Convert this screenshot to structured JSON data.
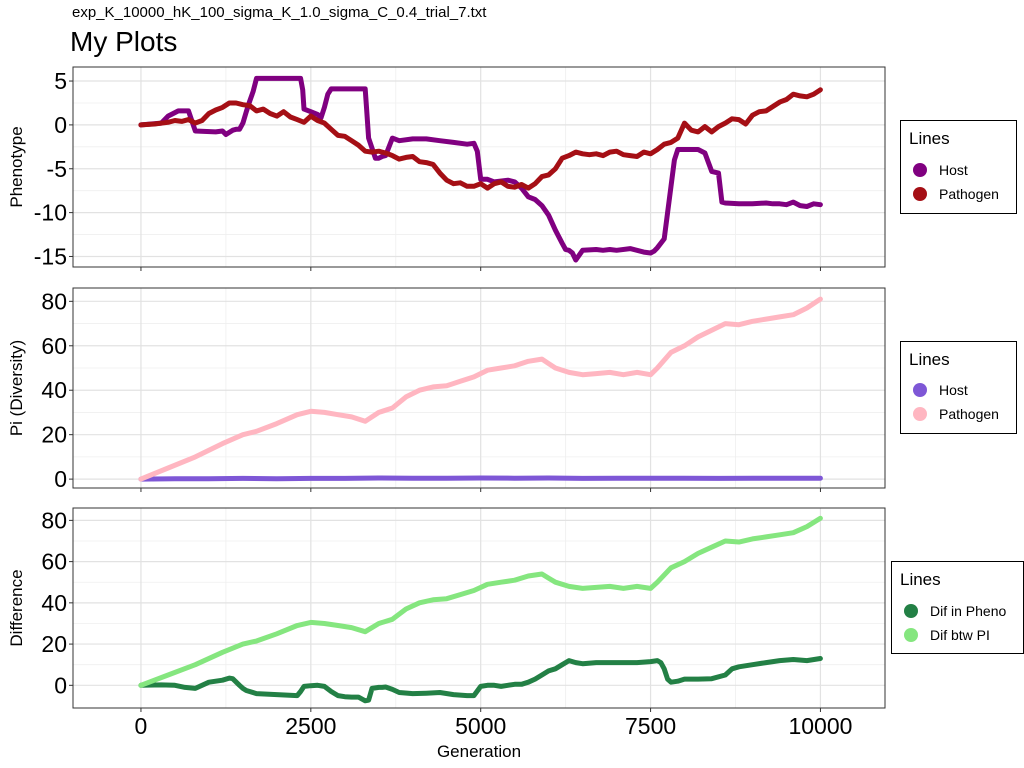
{
  "header": {
    "subtitle": "exp_K_10000_hK_100_sigma_K_1.0_sigma_C_0.4_trial_7.txt",
    "title": "My Plots"
  },
  "chart_data": [
    {
      "type": "line",
      "ylabel": "Phenotype",
      "xlabel": "",
      "xlim": [
        -1000,
        10950
      ],
      "ylim": [
        -16.2,
        6.6
      ],
      "yticks": [
        -15,
        -10,
        -5,
        0,
        5
      ],
      "xticks": [
        0,
        2500,
        5000,
        7500,
        10000
      ],
      "grid": true,
      "legend": {
        "title": "Lines",
        "placement": "right"
      },
      "series": [
        {
          "name": "Host",
          "color": "#800080",
          "x": [
            0,
            300,
            400,
            550,
            700,
            800,
            1100,
            1200,
            1250,
            1350,
            1400,
            1450,
            1500,
            1550,
            1600,
            1650,
            1700,
            2350,
            2380,
            2400,
            2500,
            2600,
            2650,
            2700,
            2750,
            2800,
            2850,
            3300,
            3320,
            3350,
            3450,
            3500,
            3550,
            3600,
            3700,
            3800,
            4000,
            4200,
            4400,
            4600,
            4800,
            4900,
            4950,
            5000,
            5100,
            5200,
            5400,
            5500,
            5600,
            5700,
            5800,
            5900,
            6000,
            6100,
            6200,
            6250,
            6300,
            6350,
            6400,
            6500,
            6700,
            6800,
            6900,
            7000,
            7200,
            7400,
            7500,
            7550,
            7600,
            7700,
            7750,
            7800,
            7850,
            7900,
            8200,
            8300,
            8400,
            8500,
            8550,
            8600,
            8800,
            9000,
            9200,
            9300,
            9400,
            9500,
            9600,
            9700,
            9800,
            9900,
            10000
          ],
          "y": [
            0,
            0.2,
            1,
            1.6,
            1.6,
            -0.7,
            -0.8,
            -0.7,
            -1.1,
            -0.6,
            -0.5,
            -0.5,
            0.2,
            1.5,
            2.7,
            3.8,
            5.3,
            5.3,
            4,
            1.8,
            1.5,
            1.2,
            0.8,
            2,
            3.5,
            4.1,
            4.1,
            4.1,
            2,
            -1.5,
            -3.8,
            -3.8,
            -3.6,
            -3.5,
            -1.5,
            -1.8,
            -1.6,
            -1.6,
            -1.8,
            -2,
            -2.2,
            -2.1,
            -3,
            -6.2,
            -6.2,
            -6.5,
            -6.3,
            -6.5,
            -7.2,
            -8.2,
            -8.5,
            -9.2,
            -10.3,
            -12,
            -13.5,
            -14.2,
            -14.3,
            -14.6,
            -15.4,
            -14.3,
            -14.2,
            -14.3,
            -14.2,
            -14.3,
            -14.1,
            -14.5,
            -14.6,
            -14.4,
            -14,
            -13,
            -10,
            -7,
            -4,
            -2.8,
            -2.8,
            -3.2,
            -5.3,
            -5.5,
            -8.8,
            -8.9,
            -9,
            -9,
            -8.9,
            -9,
            -9,
            -9.1,
            -8.8,
            -9.2,
            -9.3,
            -9,
            -9.1
          ]
        },
        {
          "name": "Pathogen",
          "color": "#a50f15",
          "x": [
            0,
            200,
            400,
            500,
            600,
            700,
            800,
            900,
            1000,
            1100,
            1200,
            1300,
            1400,
            1500,
            1600,
            1700,
            1800,
            1900,
            2000,
            2100,
            2200,
            2300,
            2400,
            2500,
            2600,
            2700,
            2800,
            2900,
            3000,
            3100,
            3200,
            3300,
            3400,
            3500,
            3600,
            3700,
            3800,
            3900,
            4000,
            4100,
            4200,
            4300,
            4400,
            4500,
            4600,
            4700,
            4800,
            4900,
            5000,
            5100,
            5200,
            5300,
            5400,
            5500,
            5600,
            5700,
            5800,
            5900,
            6000,
            6100,
            6200,
            6300,
            6400,
            6500,
            6600,
            6700,
            6800,
            6900,
            7000,
            7100,
            7200,
            7300,
            7400,
            7500,
            7600,
            7700,
            7800,
            7900,
            8000,
            8100,
            8200,
            8300,
            8400,
            8500,
            8600,
            8700,
            8800,
            8900,
            9000,
            9100,
            9200,
            9300,
            9400,
            9500,
            9600,
            9700,
            9800,
            9900,
            10000
          ],
          "y": [
            0,
            0.1,
            0.3,
            0.5,
            0.4,
            0.6,
            0.2,
            0.5,
            1.3,
            1.7,
            2,
            2.5,
            2.5,
            2.3,
            2.2,
            1.6,
            1.8,
            1.3,
            1,
            1.5,
            0.9,
            0.6,
            0.3,
            1,
            0.5,
            0.2,
            -0.5,
            -1.2,
            -1.3,
            -1.8,
            -2.3,
            -3,
            -3.1,
            -3,
            -3.2,
            -3.5,
            -3.9,
            -3.7,
            -3.6,
            -4.2,
            -4.3,
            -4.5,
            -5.5,
            -6.3,
            -6.7,
            -6.6,
            -7,
            -7,
            -6.7,
            -7.2,
            -6.7,
            -6.5,
            -7,
            -7.1,
            -6.8,
            -7.2,
            -6.7,
            -5.9,
            -5.7,
            -5,
            -3.8,
            -3.5,
            -3.1,
            -3.3,
            -3.4,
            -3.3,
            -3.5,
            -3.1,
            -3,
            -3.4,
            -3.5,
            -3.6,
            -3.1,
            -3.3,
            -2.8,
            -2.2,
            -2,
            -1.5,
            0.2,
            -0.6,
            -0.8,
            -0.2,
            -0.8,
            -0.2,
            0.2,
            0.7,
            0.6,
            0.1,
            1.1,
            1.5,
            1.6,
            2.1,
            2.6,
            2.9,
            3.5,
            3.3,
            3.2,
            3.5,
            4
          ]
        }
      ]
    },
    {
      "type": "line",
      "ylabel": "Pi (Diversity)",
      "xlabel": "",
      "xlim": [
        -1000,
        10950
      ],
      "ylim": [
        -4,
        86
      ],
      "yticks": [
        0,
        20,
        40,
        60,
        80
      ],
      "xticks": [
        0,
        2500,
        5000,
        7500,
        10000
      ],
      "grid": true,
      "legend": {
        "title": "Lines",
        "placement": "right"
      },
      "series": [
        {
          "name": "Host",
          "color": "#7e57d6",
          "x": [
            0,
            500,
            1000,
            1500,
            2000,
            2500,
            3000,
            3500,
            4000,
            4500,
            5000,
            5500,
            6000,
            6500,
            7000,
            7500,
            8000,
            8500,
            9000,
            9500,
            10000
          ],
          "y": [
            0,
            0.2,
            0.2,
            0.3,
            0.2,
            0.3,
            0.3,
            0.5,
            0.4,
            0.4,
            0.5,
            0.4,
            0.5,
            0.3,
            0.4,
            0.4,
            0.4,
            0.3,
            0.4,
            0.4,
            0.4
          ]
        },
        {
          "name": "Pathogen",
          "color": "#ffb6c1",
          "x": [
            0,
            400,
            800,
            1200,
            1500,
            1700,
            2000,
            2300,
            2500,
            2700,
            2900,
            3100,
            3300,
            3500,
            3700,
            3900,
            4100,
            4300,
            4500,
            4700,
            4900,
            5100,
            5300,
            5500,
            5700,
            5900,
            6000,
            6100,
            6300,
            6500,
            6700,
            6900,
            7100,
            7300,
            7500,
            7600,
            7800,
            8000,
            8200,
            8400,
            8600,
            8800,
            9000,
            9200,
            9400,
            9600,
            9800,
            10000
          ],
          "y": [
            0,
            5,
            10,
            16,
            20,
            21.5,
            25,
            29,
            30.5,
            30,
            29,
            28,
            26,
            30,
            32,
            37,
            40,
            41.5,
            42,
            44,
            46,
            49,
            50,
            51,
            53,
            54,
            52,
            50,
            48,
            47,
            47.5,
            48,
            47,
            48,
            47,
            50,
            57,
            60,
            64,
            67,
            70,
            69.5,
            71,
            72,
            73,
            74,
            77,
            81
          ]
        }
      ]
    },
    {
      "type": "line",
      "ylabel": "Difference",
      "xlabel": "Generation",
      "xlim": [
        -1000,
        10950
      ],
      "ylim": [
        -11,
        86
      ],
      "yticks": [
        0,
        20,
        40,
        60,
        80
      ],
      "xticks": [
        0,
        2500,
        5000,
        7500,
        10000
      ],
      "xticklabels": [
        "0",
        "2500",
        "5000",
        "7500",
        "10000"
      ],
      "grid": true,
      "legend": {
        "title": "Lines",
        "placement": "right"
      },
      "series": [
        {
          "name": "Dif in Pheno",
          "color": "#238045",
          "x": [
            0,
            300,
            500,
            650,
            800,
            1000,
            1200,
            1300,
            1350,
            1450,
            1500,
            1550,
            1700,
            2000,
            2300,
            2350,
            2400,
            2500,
            2600,
            2700,
            2800,
            2900,
            3000,
            3100,
            3200,
            3300,
            3350,
            3400,
            3500,
            3550,
            3600,
            3700,
            3800,
            4000,
            4200,
            4400,
            4600,
            4800,
            4900,
            5000,
            5100,
            5200,
            5300,
            5400,
            5500,
            5600,
            5700,
            5800,
            5900,
            6000,
            6100,
            6200,
            6300,
            6400,
            6500,
            6700,
            6900,
            7100,
            7300,
            7500,
            7600,
            7650,
            7700,
            7750,
            7800,
            7900,
            8000,
            8200,
            8400,
            8600,
            8700,
            8800,
            9000,
            9200,
            9400,
            9600,
            9800,
            10000
          ],
          "y": [
            0,
            0.2,
            0,
            -1,
            -1.5,
            1.5,
            2.5,
            3.5,
            3.2,
            0,
            -1.5,
            -2.5,
            -4,
            -4.5,
            -5,
            -3,
            -0.5,
            -0.2,
            0,
            -0.5,
            -3,
            -5,
            -5.5,
            -5.7,
            -5.7,
            -7.5,
            -7.2,
            -1.5,
            -1,
            -1,
            -0.8,
            -2,
            -3.5,
            -4,
            -3.8,
            -3.5,
            -4.5,
            -5,
            -5,
            -0.5,
            0,
            0,
            -0.5,
            0,
            0.5,
            0.5,
            1.5,
            3,
            5,
            7,
            8,
            10,
            12,
            11,
            10.5,
            11,
            11,
            11,
            11,
            11.5,
            12,
            11,
            8,
            3,
            1.5,
            2,
            3,
            3,
            3.2,
            5,
            8,
            9,
            10,
            11,
            12,
            12.5,
            12,
            13
          ]
        },
        {
          "name": "Dif btw PI",
          "color": "#85e67f",
          "x": [
            0,
            400,
            800,
            1200,
            1500,
            1700,
            2000,
            2300,
            2500,
            2700,
            2900,
            3100,
            3300,
            3500,
            3700,
            3900,
            4100,
            4300,
            4500,
            4700,
            4900,
            5100,
            5300,
            5500,
            5700,
            5900,
            6000,
            6100,
            6300,
            6500,
            6700,
            6900,
            7100,
            7300,
            7500,
            7600,
            7800,
            8000,
            8200,
            8400,
            8600,
            8800,
            9000,
            9200,
            9400,
            9600,
            9800,
            10000
          ],
          "y": [
            0,
            5,
            10,
            16,
            20,
            21.5,
            25,
            29,
            30.5,
            30,
            29,
            28,
            26,
            30,
            32,
            37,
            40,
            41.5,
            42,
            44,
            46,
            49,
            50,
            51,
            53,
            54,
            52,
            50,
            48,
            47,
            47.5,
            48,
            47,
            48,
            47,
            50,
            57,
            60,
            64,
            67,
            70,
            69.5,
            71,
            72,
            73,
            74,
            77,
            81
          ]
        }
      ]
    }
  ]
}
